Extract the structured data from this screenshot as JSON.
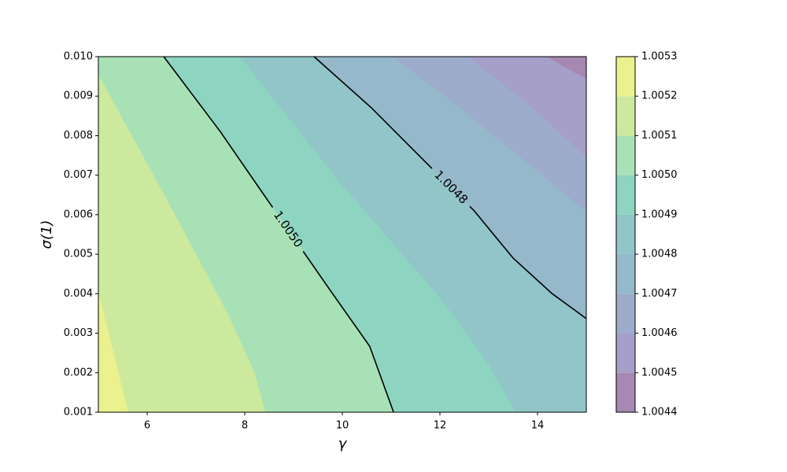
{
  "chart_data": {
    "type": "contour",
    "xlabel": "γ",
    "ylabel": "σ(1)",
    "xlim": [
      5,
      15
    ],
    "ylim": [
      0.001,
      0.01
    ],
    "xticks": [
      6,
      8,
      10,
      12,
      14
    ],
    "yticks": [
      {
        "value": 0.001,
        "label": "0.001"
      },
      {
        "value": 0.002,
        "label": "0.002"
      },
      {
        "value": 0.003,
        "label": "0.003"
      },
      {
        "value": 0.004,
        "label": "0.004"
      },
      {
        "value": 0.005,
        "label": "0.005"
      },
      {
        "value": 0.006,
        "label": "0.006"
      },
      {
        "value": 0.007,
        "label": "0.007"
      },
      {
        "value": 0.008,
        "label": "0.008"
      },
      {
        "value": 0.009,
        "label": "0.009"
      },
      {
        "value": 0.01,
        "label": "0.010"
      }
    ],
    "colorbar": {
      "ticks": [
        {
          "value": 1.0044,
          "label": "1.0044"
        },
        {
          "value": 1.0045,
          "label": "1.0045"
        },
        {
          "value": 1.0046,
          "label": "1.0046"
        },
        {
          "value": 1.0047,
          "label": "1.0047"
        },
        {
          "value": 1.0048,
          "label": "1.0048"
        },
        {
          "value": 1.0049,
          "label": "1.0049"
        },
        {
          "value": 1.005,
          "label": "1.0050"
        },
        {
          "value": 1.0051,
          "label": "1.0051"
        },
        {
          "value": 1.0052,
          "label": "1.0052"
        },
        {
          "value": 1.0053,
          "label": "1.0053"
        }
      ],
      "colors": [
        "#a688b2",
        "#a59fca",
        "#9eaccc",
        "#95b8cb",
        "#91c5c8",
        "#8dd5c1",
        "#a9e1b6",
        "#cde99d",
        "#ebf18c"
      ]
    },
    "contours": [
      {
        "level": 1.0045,
        "x": [
          14.19,
          14.6,
          15
        ],
        "y": [
          0.01,
          0.0097,
          0.00944
        ]
      },
      {
        "level": 1.0046,
        "x": [
          12.58,
          13.8,
          15
        ],
        "y": [
          0.01,
          0.0088,
          0.00745
        ]
      },
      {
        "level": 1.0047,
        "x": [
          11.02,
          12.0,
          13.0,
          14.0,
          15
        ],
        "y": [
          0.01,
          0.0091,
          0.0081,
          0.0071,
          0.00606
        ]
      },
      {
        "level": 1.0048,
        "label": "1.0048",
        "line": true,
        "x": [
          9.42,
          10.6,
          11.77,
          12.7,
          13.5,
          14.3,
          15
        ],
        "y": [
          0.01,
          0.0087,
          0.00725,
          0.0061,
          0.0049,
          0.004,
          0.00337
        ]
      },
      {
        "level": 1.0049,
        "x": [
          7.9,
          9.92,
          12.02,
          13.0,
          13.55
        ],
        "y": [
          0.01,
          0.00685,
          0.00387,
          0.0022,
          0.001
        ]
      },
      {
        "level": 1.005,
        "label": "1.0050",
        "line": true,
        "x": [
          6.34,
          7.5,
          8.31,
          9.76,
          10.56,
          11.05
        ],
        "y": [
          0.01,
          0.0081,
          0.00665,
          0.00407,
          0.00267,
          0.001
        ]
      },
      {
        "level": 1.0051,
        "x": [
          5,
          6.37,
          7.66,
          8.2,
          8.42
        ],
        "y": [
          0.00954,
          0.00646,
          0.00347,
          0.002,
          0.001
        ]
      },
      {
        "level": 1.0052,
        "x": [
          5,
          5.24,
          5.61
        ],
        "y": [
          0.004,
          0.00287,
          0.001
        ]
      }
    ]
  }
}
